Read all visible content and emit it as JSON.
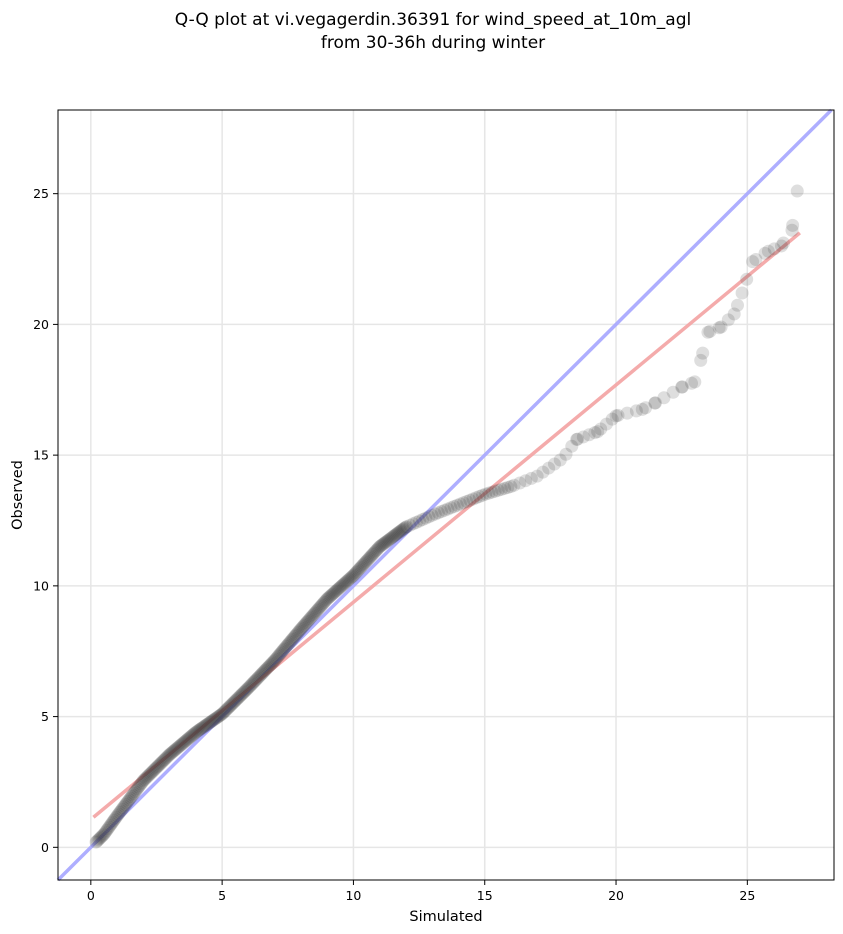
{
  "chart_data": {
    "type": "scatter",
    "title_line1": "Q-Q plot at vi.vegagerdin.36391 for wind_speed_at_10m_agl",
    "title_line2": "from 30-36h during winter",
    "xlabel": "Simulated",
    "ylabel": "Observed",
    "xlim": [
      -1.25,
      28.3
    ],
    "ylim": [
      -1.25,
      28.2
    ],
    "xticks": [
      0,
      5,
      10,
      15,
      20,
      25
    ],
    "yticks": [
      0,
      5,
      10,
      15,
      20,
      25
    ],
    "xtick_labels": [
      "0",
      "5",
      "10",
      "15",
      "20",
      "25"
    ],
    "ytick_labels": [
      "0",
      "5",
      "10",
      "15",
      "20",
      "25"
    ],
    "grid": true,
    "reference_line": {
      "name": "1:1",
      "color": "#aaaaff",
      "slope": 1,
      "intercept": 0
    },
    "fit_line": {
      "name": "linear fit",
      "color": "#f4a7a7",
      "x": [
        0.1,
        27.0
      ],
      "y": [
        1.15,
        23.5
      ]
    },
    "point_color": "#333333",
    "quantile_anchors": [
      [
        0.2,
        0.2
      ],
      [
        0.5,
        0.5
      ],
      [
        1.0,
        1.2
      ],
      [
        2.0,
        2.55
      ],
      [
        3.0,
        3.55
      ],
      [
        4.0,
        4.4
      ],
      [
        5.0,
        5.1
      ],
      [
        6.0,
        6.1
      ],
      [
        7.0,
        7.15
      ],
      [
        8.0,
        8.35
      ],
      [
        9.0,
        9.5
      ],
      [
        10.0,
        10.4
      ],
      [
        11.0,
        11.5
      ],
      [
        12.0,
        12.25
      ],
      [
        13.0,
        12.7
      ],
      [
        14.0,
        13.1
      ],
      [
        15.0,
        13.5
      ],
      [
        16.0,
        13.8
      ],
      [
        17.0,
        14.2
      ],
      [
        18.0,
        14.9
      ],
      [
        18.5,
        15.6
      ],
      [
        19.3,
        15.9
      ],
      [
        20.0,
        16.5
      ],
      [
        21.0,
        16.75
      ],
      [
        21.5,
        17.0
      ],
      [
        22.5,
        17.6
      ],
      [
        23.0,
        17.8
      ],
      [
        23.3,
        18.9
      ],
      [
        23.5,
        19.7
      ],
      [
        24.0,
        19.9
      ],
      [
        24.5,
        20.4
      ],
      [
        24.8,
        21.2
      ],
      [
        25.2,
        22.4
      ],
      [
        25.8,
        22.8
      ],
      [
        26.3,
        23.0
      ],
      [
        26.7,
        23.6
      ],
      [
        26.9,
        25.1
      ]
    ]
  }
}
